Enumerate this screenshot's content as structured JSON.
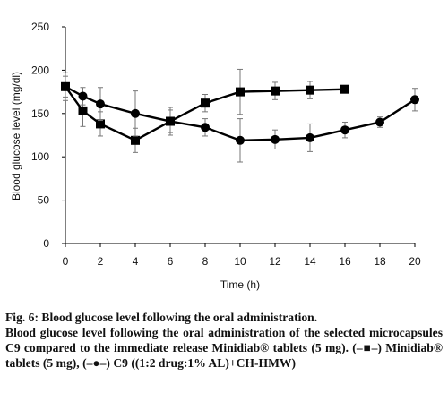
{
  "chart_data": {
    "type": "line",
    "ylabel": "Blood glucose level (mg/dl)",
    "xlabel": "Time (h)",
    "xlim": [
      0,
      20
    ],
    "ylim": [
      0,
      250
    ],
    "x_ticks": [
      0,
      2,
      4,
      6,
      8,
      10,
      12,
      14,
      16,
      18,
      20
    ],
    "y_ticks": [
      0,
      50,
      100,
      150,
      200,
      250
    ],
    "grid": false,
    "legend": "none",
    "series": [
      {
        "marker": "square",
        "color": "#000000",
        "x": [
          0,
          1,
          2,
          4,
          6,
          8,
          10,
          12,
          14,
          16
        ],
        "y": [
          181,
          153,
          138,
          119,
          141,
          162,
          175,
          176,
          177,
          178
        ],
        "err": [
          12,
          18,
          14,
          14,
          13,
          10,
          26,
          10,
          10,
          0
        ]
      },
      {
        "marker": "circle",
        "color": "#000000",
        "x": [
          0,
          1,
          2,
          4,
          6,
          8,
          10,
          12,
          14,
          16,
          18,
          20
        ],
        "y": [
          181,
          170,
          161,
          150,
          141,
          134,
          119,
          120,
          122,
          131,
          140,
          166
        ],
        "err": [
          16,
          10,
          19,
          26,
          16,
          10,
          25,
          11,
          16,
          9,
          6,
          13
        ]
      }
    ]
  },
  "caption": {
    "title": "Fig. 6: Blood glucose level following the oral administration.",
    "text": "Blood glucose level following the oral administration of the selected microcapsules C9 compared to the immediate release Minidiab® tablets (5 mg). (–■–) Minidiab® tablets (5 mg), (–●–) C9 ((1:2 drug:1% AL)+CH-HMW)"
  }
}
